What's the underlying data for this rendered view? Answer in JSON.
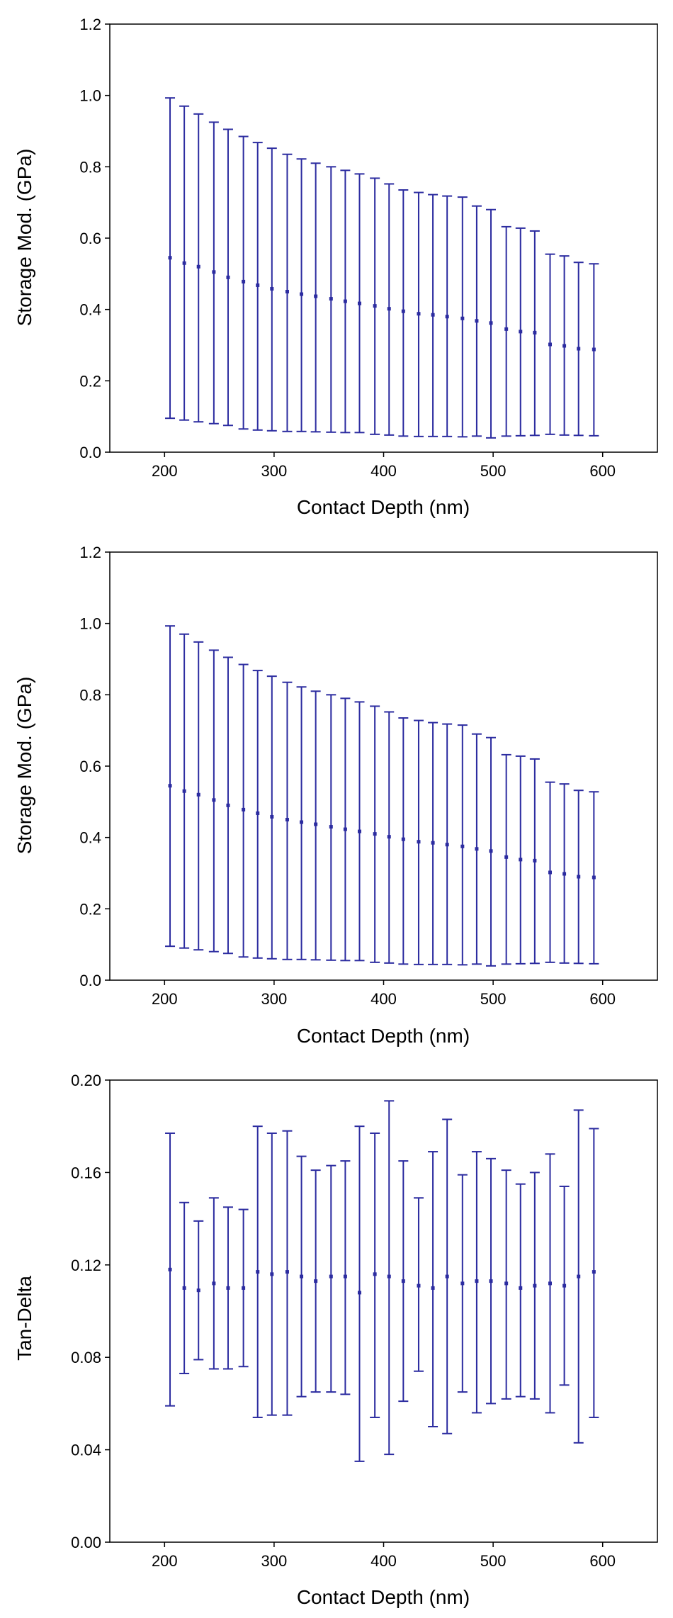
{
  "colors": {
    "series": "#2c2ca0",
    "axis": "#000000"
  },
  "chart_data": [
    {
      "type": "scatter",
      "title": "",
      "xlabel": "Contact Depth (nm)",
      "ylabel": "Storage Mod. (GPa)",
      "xlim": [
        150,
        650
      ],
      "ylim": [
        0,
        1.2
      ],
      "xticks": [
        200,
        300,
        400,
        500,
        600
      ],
      "yticks": [
        0.0,
        0.2,
        0.4,
        0.6,
        0.8,
        1.0,
        1.2
      ],
      "xtick_labels": [
        "200",
        "300",
        "400",
        "500",
        "600"
      ],
      "ytick_labels": [
        "0.0",
        "0.2",
        "0.4",
        "0.6",
        "0.8",
        "1.0",
        "1.2"
      ],
      "grid": false,
      "x": [
        205,
        218,
        231,
        245,
        258,
        272,
        285,
        298,
        312,
        325,
        338,
        352,
        365,
        378,
        392,
        405,
        418,
        432,
        445,
        458,
        472,
        485,
        498,
        512,
        525,
        538,
        552,
        565,
        578,
        592
      ],
      "y": [
        0.545,
        0.53,
        0.52,
        0.505,
        0.49,
        0.478,
        0.468,
        0.458,
        0.45,
        0.443,
        0.437,
        0.43,
        0.423,
        0.417,
        0.41,
        0.402,
        0.395,
        0.388,
        0.385,
        0.38,
        0.375,
        0.368,
        0.362,
        0.345,
        0.338,
        0.335,
        0.302,
        0.298,
        0.29,
        0.288
      ],
      "y_upper": [
        0.993,
        0.97,
        0.948,
        0.925,
        0.905,
        0.885,
        0.868,
        0.852,
        0.835,
        0.822,
        0.81,
        0.8,
        0.79,
        0.78,
        0.768,
        0.752,
        0.735,
        0.728,
        0.722,
        0.718,
        0.715,
        0.69,
        0.68,
        0.632,
        0.628,
        0.62,
        0.555,
        0.55,
        0.532,
        0.528
      ],
      "y_lower": [
        0.095,
        0.09,
        0.085,
        0.08,
        0.075,
        0.065,
        0.062,
        0.06,
        0.058,
        0.058,
        0.057,
        0.056,
        0.055,
        0.055,
        0.05,
        0.048,
        0.045,
        0.044,
        0.044,
        0.044,
        0.043,
        0.045,
        0.04,
        0.045,
        0.046,
        0.047,
        0.05,
        0.048,
        0.047,
        0.046
      ]
    },
    {
      "type": "scatter",
      "title": "",
      "xlabel": "Contact Depth (nm)",
      "ylabel": "Storage Mod. (GPa)",
      "xlim": [
        150,
        650
      ],
      "ylim": [
        0,
        1.2
      ],
      "xticks": [
        200,
        300,
        400,
        500,
        600
      ],
      "yticks": [
        0.0,
        0.2,
        0.4,
        0.6,
        0.8,
        1.0,
        1.2
      ],
      "xtick_labels": [
        "200",
        "300",
        "400",
        "500",
        "600"
      ],
      "ytick_labels": [
        "0.0",
        "0.2",
        "0.4",
        "0.6",
        "0.8",
        "1.0",
        "1.2"
      ],
      "grid": false,
      "x": [
        205,
        218,
        231,
        245,
        258,
        272,
        285,
        298,
        312,
        325,
        338,
        352,
        365,
        378,
        392,
        405,
        418,
        432,
        445,
        458,
        472,
        485,
        498,
        512,
        525,
        538,
        552,
        565,
        578,
        592
      ],
      "y": [
        0.545,
        0.53,
        0.52,
        0.505,
        0.49,
        0.478,
        0.468,
        0.458,
        0.45,
        0.443,
        0.437,
        0.43,
        0.423,
        0.417,
        0.41,
        0.402,
        0.395,
        0.388,
        0.385,
        0.38,
        0.375,
        0.368,
        0.362,
        0.345,
        0.338,
        0.335,
        0.302,
        0.298,
        0.29,
        0.288
      ],
      "y_upper": [
        0.993,
        0.97,
        0.948,
        0.925,
        0.905,
        0.885,
        0.868,
        0.852,
        0.835,
        0.822,
        0.81,
        0.8,
        0.79,
        0.78,
        0.768,
        0.752,
        0.735,
        0.728,
        0.722,
        0.718,
        0.715,
        0.69,
        0.68,
        0.632,
        0.628,
        0.62,
        0.555,
        0.55,
        0.532,
        0.528
      ],
      "y_lower": [
        0.095,
        0.09,
        0.085,
        0.08,
        0.075,
        0.065,
        0.062,
        0.06,
        0.058,
        0.058,
        0.057,
        0.056,
        0.055,
        0.055,
        0.05,
        0.048,
        0.045,
        0.044,
        0.044,
        0.044,
        0.043,
        0.045,
        0.04,
        0.045,
        0.046,
        0.047,
        0.05,
        0.048,
        0.047,
        0.046
      ]
    },
    {
      "type": "scatter",
      "title": "",
      "xlabel": "Contact Depth (nm)",
      "ylabel": "Tan-Delta",
      "xlim": [
        150,
        650
      ],
      "ylim": [
        0,
        0.2
      ],
      "xticks": [
        200,
        300,
        400,
        500,
        600
      ],
      "yticks": [
        0.0,
        0.04,
        0.08,
        0.12,
        0.16,
        0.2
      ],
      "xtick_labels": [
        "200",
        "300",
        "400",
        "500",
        "600"
      ],
      "ytick_labels": [
        "0.00",
        "0.04",
        "0.08",
        "0.12",
        "0.16",
        "0.20"
      ],
      "grid": false,
      "x": [
        205,
        218,
        231,
        245,
        258,
        272,
        285,
        298,
        312,
        325,
        338,
        352,
        365,
        378,
        392,
        405,
        418,
        432,
        445,
        458,
        472,
        485,
        498,
        512,
        525,
        538,
        552,
        565,
        578,
        592
      ],
      "y": [
        0.118,
        0.11,
        0.109,
        0.112,
        0.11,
        0.11,
        0.117,
        0.116,
        0.117,
        0.115,
        0.113,
        0.115,
        0.115,
        0.108,
        0.116,
        0.115,
        0.113,
        0.111,
        0.11,
        0.115,
        0.112,
        0.113,
        0.113,
        0.112,
        0.11,
        0.111,
        0.112,
        0.111,
        0.115,
        0.117
      ],
      "y_upper": [
        0.177,
        0.147,
        0.139,
        0.149,
        0.145,
        0.144,
        0.18,
        0.177,
        0.178,
        0.167,
        0.161,
        0.163,
        0.165,
        0.18,
        0.177,
        0.191,
        0.165,
        0.149,
        0.169,
        0.183,
        0.159,
        0.169,
        0.166,
        0.161,
        0.155,
        0.16,
        0.168,
        0.154,
        0.187,
        0.179
      ],
      "y_lower": [
        0.059,
        0.073,
        0.079,
        0.075,
        0.075,
        0.076,
        0.054,
        0.055,
        0.055,
        0.063,
        0.065,
        0.065,
        0.064,
        0.035,
        0.054,
        0.038,
        0.061,
        0.074,
        0.05,
        0.047,
        0.065,
        0.056,
        0.06,
        0.062,
        0.063,
        0.062,
        0.056,
        0.068,
        0.043,
        0.054
      ]
    }
  ]
}
